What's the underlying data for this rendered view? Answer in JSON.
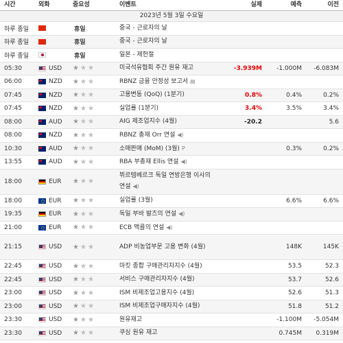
{
  "header": {
    "time": "시간",
    "currency": "외화",
    "importance": "중요성",
    "event": "이벤트",
    "actual": "실제",
    "forecast": "예측",
    "previous": "이전"
  },
  "date": "2023년 5월 3일 수요일",
  "rows": [
    {
      "time": "하루 종일",
      "flag": "cn",
      "cur": "",
      "holiday": "휴일",
      "event": "중국 - 근로자의 날",
      "actual": "",
      "forecast": "",
      "previous": ""
    },
    {
      "time": "하루 종일",
      "flag": "cn",
      "cur": "",
      "holiday": "휴일",
      "event": "중국 - 근로자의 날",
      "actual": "",
      "forecast": "",
      "previous": ""
    },
    {
      "time": "하루 종일",
      "flag": "jp",
      "cur": "",
      "holiday": "휴일",
      "event": "일본 - 제헌절",
      "actual": "",
      "forecast": "",
      "previous": ""
    },
    {
      "time": "05:30",
      "flag": "us",
      "cur": "USD",
      "stars": 1,
      "event": "미국석유협회 주간 원유 재고",
      "actual": "-3.939M",
      "actual_color": "red",
      "forecast": "-1.000M",
      "previous": "-6.083M"
    },
    {
      "time": "06:00",
      "flag": "nz",
      "cur": "NZD",
      "stars": 1,
      "event": "RBNZ 금융 안정성 보고서",
      "icon": "doc",
      "actual": "",
      "forecast": "",
      "previous": ""
    },
    {
      "time": "07:45",
      "flag": "nz",
      "cur": "NZD",
      "stars": 1,
      "event": "고용변동 (QoQ) (1분기)",
      "actual": "0.8%",
      "actual_color": "red",
      "forecast": "0.4%",
      "previous": "0.2%"
    },
    {
      "time": "07:45",
      "flag": "nz",
      "cur": "NZD",
      "stars": 1,
      "event": "실업률 (1분기)",
      "actual": "3.4%",
      "actual_color": "red",
      "forecast": "3.5%",
      "previous": "3.4%"
    },
    {
      "time": "08:00",
      "flag": "au",
      "cur": "AUD",
      "stars": 1,
      "event": "AIG 제조업지수 (4월)",
      "actual": "-20.2",
      "actual_color": "black",
      "forecast": "",
      "previous": "5.6"
    },
    {
      "time": "08:00",
      "flag": "nz",
      "cur": "NZD",
      "stars": 1,
      "event": "RBNZ 총재 Orr 연설",
      "icon": "speaker",
      "actual": "",
      "forecast": "",
      "previous": ""
    },
    {
      "time": "10:30",
      "flag": "au",
      "cur": "AUD",
      "stars": 1,
      "event": "소매판매 (MoM) (3월)",
      "icon": "p",
      "actual": "",
      "forecast": "0.3%",
      "previous": "0.2%"
    },
    {
      "time": "13:55",
      "flag": "au",
      "cur": "AUD",
      "stars": 1,
      "event": "RBA 부총재 Ellis 연설",
      "icon": "speaker",
      "actual": "",
      "forecast": "",
      "previous": ""
    },
    {
      "time": "18:00",
      "flag": "de",
      "cur": "EUR",
      "stars": 1,
      "event": "뷔르템베르크 독일 연방은행 이사의 연설",
      "icon": "speaker",
      "tall": true,
      "actual": "",
      "forecast": "",
      "previous": ""
    },
    {
      "time": "18:00",
      "flag": "eu",
      "cur": "EUR",
      "stars": 1,
      "event": "실업률 (3월)",
      "actual": "",
      "forecast": "6.6%",
      "previous": "6.6%"
    },
    {
      "time": "19:35",
      "flag": "de",
      "cur": "EUR",
      "stars": 1,
      "event": "독일 부바 발즈의 연설",
      "icon": "speaker",
      "actual": "",
      "forecast": "",
      "previous": ""
    },
    {
      "time": "21:00",
      "flag": "eu",
      "cur": "EUR",
      "stars": 1,
      "event": "ECB 맥콜의 연설",
      "icon": "speaker",
      "actual": "",
      "forecast": "",
      "previous": ""
    },
    {
      "time": "21:15",
      "flag": "us",
      "cur": "USD",
      "stars": 1,
      "event": "ADP 비농업부문 고용 변화 (4월)",
      "tall": true,
      "actual": "",
      "forecast": "148K",
      "previous": "145K"
    },
    {
      "time": "22:45",
      "flag": "us",
      "cur": "USD",
      "stars": 1,
      "event": "마킷 종합 구매관리자지수 (4월)",
      "actual": "",
      "forecast": "53.5",
      "previous": "52.3"
    },
    {
      "time": "22:45",
      "flag": "us",
      "cur": "USD",
      "stars": 1,
      "event": "서비스 구매관리자지수 (4월)",
      "actual": "",
      "forecast": "53.7",
      "previous": "52.6"
    },
    {
      "time": "23:00",
      "flag": "us",
      "cur": "USD",
      "stars": 1,
      "event": "ISM 비제조업고용지수 (4월)",
      "actual": "",
      "forecast": "52.6",
      "previous": "51.3"
    },
    {
      "time": "23:00",
      "flag": "us",
      "cur": "USD",
      "stars": 1,
      "event": "ISM 비제조업구매자지수 (4월)",
      "actual": "",
      "forecast": "51.8",
      "previous": "51.2"
    },
    {
      "time": "23:30",
      "flag": "us",
      "cur": "USD",
      "stars": 1,
      "event": "원유재고",
      "actual": "",
      "forecast": "-1.100M",
      "previous": "-5.054M"
    },
    {
      "time": "23:30",
      "flag": "us",
      "cur": "USD",
      "stars": 1,
      "event": "쿠싱 원유 재고",
      "actual": "",
      "forecast": "0.745M",
      "previous": "0.319M"
    }
  ],
  "colors": {
    "actual_red": "#e60000",
    "star_on": "#9a9a9a",
    "star_off": "#bdbdbd",
    "alt_row": "#f5f5f5"
  }
}
